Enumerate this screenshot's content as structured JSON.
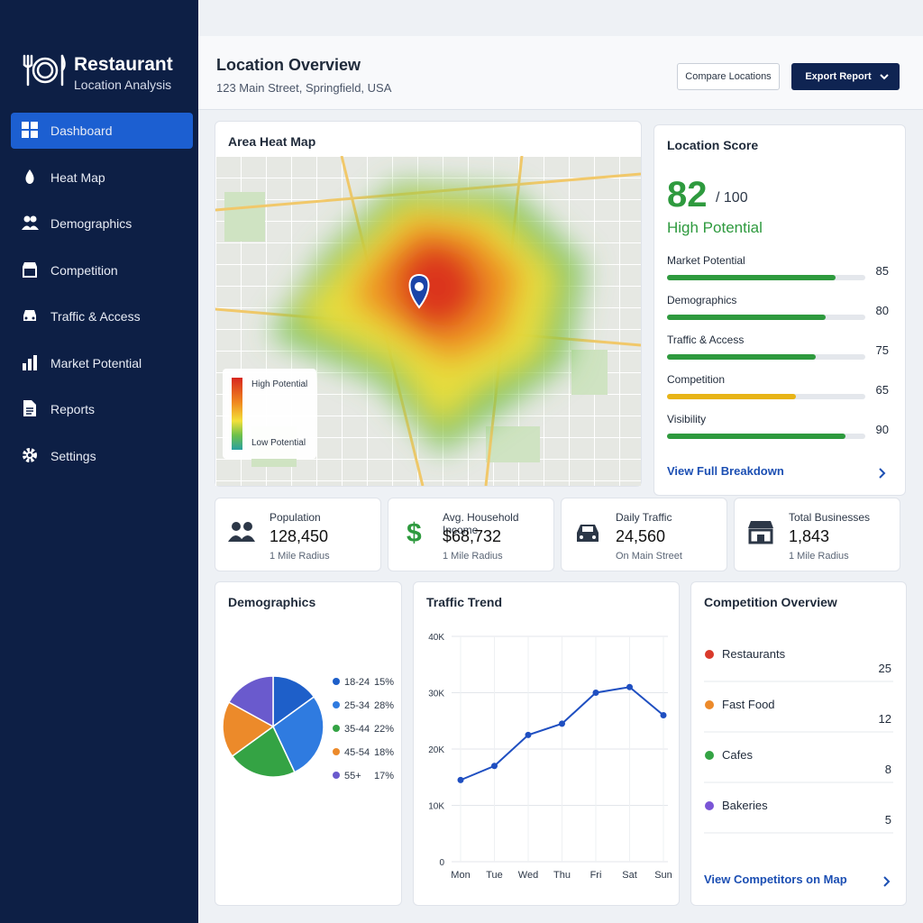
{
  "sidebar": {
    "brand_title": "Restaurant",
    "brand_subtitle": "Location Analysis",
    "nav": [
      "Dashboard",
      "Heat Map",
      "Demographics",
      "Competition",
      "Traffic & Access",
      "Market Potential",
      "Reports",
      "Settings"
    ],
    "active": 0
  },
  "header": {
    "title": "Location Overview",
    "address": "123 Main Street, Springfield, USA",
    "buttons": [
      "Compare Locations",
      "Export Report"
    ]
  },
  "heat_map": {
    "title": "Area Heat Map",
    "legend_high": "High Potential",
    "legend_low": "Low Potential"
  },
  "score": {
    "title": "Location Score",
    "value": 82,
    "max": {
      "value": 100,
      "label": "/ 100"
    },
    "rating": "High Potential",
    "factors": [
      {
        "name": "Market Potential",
        "value": 85,
        "color": "#2e9a3e"
      },
      {
        "name": "Demographics",
        "value": 80,
        "color": "#2e9a3e"
      },
      {
        "name": "Traffic & Access",
        "value": 75,
        "color": "#2e9a3e"
      },
      {
        "name": "Competition",
        "value": 65,
        "color": "#e8b417"
      },
      {
        "name": "Visibility",
        "value": 90,
        "color": "#2e9a3e"
      }
    ],
    "link": "View Full Breakdown"
  },
  "stats": [
    {
      "label": "Population",
      "value": "128,450",
      "note": "1 Mile Radius"
    },
    {
      "label": "Avg. Household Income",
      "value": "$68,732",
      "note": "1 Mile Radius"
    },
    {
      "label": "Daily Traffic",
      "value": "24,560",
      "note": "On Main Street"
    },
    {
      "label": "Total Businesses",
      "value": "1,843",
      "note": "1 Mile Radius"
    }
  ],
  "chart_data": [
    {
      "type": "pie",
      "title": "Demographics",
      "categories": [
        "18-24",
        "25-34",
        "35-44",
        "45-54",
        "55+"
      ],
      "values": [
        15,
        28,
        22,
        18,
        17
      ],
      "value_labels": [
        "15%",
        "28%",
        "22%",
        "18%",
        "17%"
      ],
      "colors": [
        "#1e5fc9",
        "#2f7be0",
        "#34a344",
        "#ec8a2a",
        "#6a5acd"
      ]
    },
    {
      "type": "line",
      "title": "Traffic Trend",
      "categories": [
        "Mon",
        "Tue",
        "Wed",
        "Thu",
        "Fri",
        "Sat",
        "Sun"
      ],
      "values": [
        14500,
        17000,
        22500,
        24500,
        30000,
        31000,
        26000
      ],
      "color": "#1f4fc1",
      "ylim": [
        0,
        40000
      ],
      "yticks": [
        0,
        {
          "value": 10000,
          "label": "10K"
        },
        {
          "value": 20000,
          "label": "20K"
        },
        {
          "value": 30000,
          "label": "30K"
        },
        {
          "value": 40000,
          "label": "40K"
        }
      ],
      "grid": true
    }
  ],
  "competition": {
    "title": "Competition Overview",
    "items": [
      {
        "name": "Restaurants",
        "count": 25,
        "color": "#d93a2b"
      },
      {
        "name": "Fast Food",
        "count": 12,
        "color": "#ec8a2a"
      },
      {
        "name": "Cafes",
        "count": 8,
        "color": "#34a344"
      },
      {
        "name": "Bakeries",
        "count": 5,
        "color": "#7a55d6"
      }
    ],
    "link": "View Competitors on Map"
  }
}
